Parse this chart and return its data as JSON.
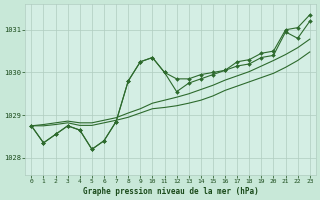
{
  "title": "Graphe pression niveau de la mer (hPa)",
  "background_color": "#c8e8d8",
  "plot_background_color": "#d4eee4",
  "line_color": "#2d6a2d",
  "grid_color": "#b0ccc0",
  "text_color": "#1a4a1a",
  "xlim": [
    -0.5,
    23.5
  ],
  "ylim": [
    1027.6,
    1031.6
  ],
  "yticks": [
    1028,
    1029,
    1030,
    1031
  ],
  "xticks": [
    0,
    1,
    2,
    3,
    4,
    5,
    6,
    7,
    8,
    9,
    10,
    11,
    12,
    13,
    14,
    15,
    16,
    17,
    18,
    19,
    20,
    21,
    22,
    23
  ],
  "series_marked_1": [
    1028.75,
    1028.35,
    1028.55,
    1028.75,
    1028.65,
    1028.2,
    1028.4,
    1028.85,
    1029.8,
    1030.25,
    1030.35,
    1030.0,
    1029.85,
    1029.85,
    1029.95,
    1030.0,
    1030.05,
    1030.25,
    1030.3,
    1030.45,
    1030.5,
    1031.0,
    1031.05,
    1031.35
  ],
  "series_marked_2": [
    1028.75,
    1028.35,
    1028.55,
    1028.75,
    1028.65,
    1028.2,
    1028.4,
    1028.85,
    1029.8,
    1030.25,
    1030.35,
    1030.0,
    1029.55,
    1029.75,
    1029.85,
    1029.95,
    1030.05,
    1030.15,
    1030.2,
    1030.35,
    1030.4,
    1030.95,
    1030.8,
    1031.2
  ],
  "series_trend_1": [
    1028.75,
    1028.75,
    1028.78,
    1028.82,
    1028.76,
    1028.76,
    1028.82,
    1028.88,
    1028.95,
    1029.05,
    1029.15,
    1029.18,
    1029.22,
    1029.28,
    1029.35,
    1029.45,
    1029.58,
    1029.68,
    1029.78,
    1029.88,
    1029.98,
    1030.12,
    1030.28,
    1030.48
  ],
  "series_trend_2": [
    1028.75,
    1028.78,
    1028.82,
    1028.86,
    1028.82,
    1028.82,
    1028.88,
    1028.94,
    1029.05,
    1029.15,
    1029.28,
    1029.35,
    1029.42,
    1029.5,
    1029.6,
    1029.7,
    1029.82,
    1029.92,
    1030.02,
    1030.15,
    1030.28,
    1030.42,
    1030.58,
    1030.78
  ]
}
